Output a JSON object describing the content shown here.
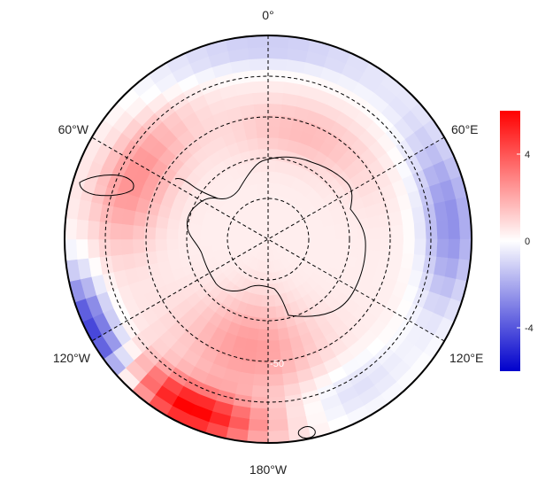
{
  "map": {
    "projection": "south-polar-stereographic",
    "longitude_labels": [
      "0°",
      "60°E",
      "120°E",
      "180°W",
      "120°W",
      "60°W"
    ],
    "latitude_circle_label": "-50",
    "grid": {
      "meridians_every_deg": 60,
      "parallels_deg": [
        -80,
        -70,
        -60,
        -50
      ],
      "style": "dashed"
    },
    "coastlines": true,
    "colors": {
      "negative": "#0000cc",
      "zero": "#ffffff",
      "positive": "#ff0000"
    }
  },
  "chart_data": {
    "type": "heatmap",
    "field": "polar anomaly field",
    "value_range": [
      -6,
      6
    ],
    "colorbar": {
      "ticks": [
        4,
        0,
        -4
      ],
      "tick_labels": [
        "4",
        "0",
        "-4"
      ],
      "placement": "right"
    },
    "features": [
      {
        "region": "Amundsen/Ross Sea sector, outer ring",
        "approx_lon": "150°W-180°",
        "value": 5.5
      },
      {
        "region": "Bellingshausen/Amundsen coast",
        "approx_lon": "60°W-100°W",
        "value": 2.5
      },
      {
        "region": "Ross Sea interior",
        "approx_lon": "170°W-150°W",
        "value": 2
      },
      {
        "region": "Outer ring south Pacific",
        "approx_lon": "100°W-140°W",
        "value": -4.5
      },
      {
        "region": "Indian Ocean sector outer ring",
        "approx_lon": "60°E-120°E",
        "value": -2.5
      },
      {
        "region": "Atlantic sector outer ring",
        "approx_lon": "30°W-30°E",
        "value": -1.5
      },
      {
        "region": "Antarctic interior",
        "approx_lon": "all",
        "value": 0.5
      }
    ]
  }
}
